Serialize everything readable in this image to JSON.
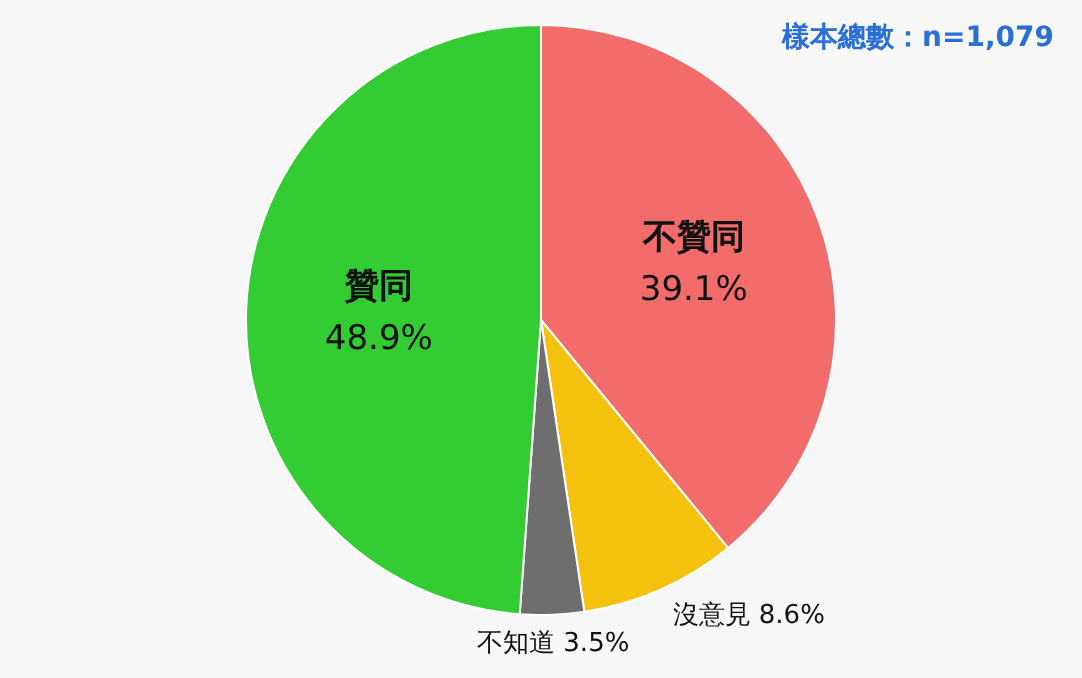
{
  "chart_data": {
    "type": "pie",
    "categories": [
      "不贊同",
      "沒意見",
      "不知道",
      "贊同"
    ],
    "values": [
      39.1,
      8.6,
      3.5,
      48.9
    ],
    "colors": [
      "#f36c6c",
      "#f4c20d",
      "#6e6e6e",
      "#33cc33"
    ],
    "value_labels": [
      "39.1%",
      "8.6%",
      "3.5%",
      "48.9%"
    ],
    "annotations": [
      "樣本總數：n=1,079"
    ],
    "legend": false
  }
}
